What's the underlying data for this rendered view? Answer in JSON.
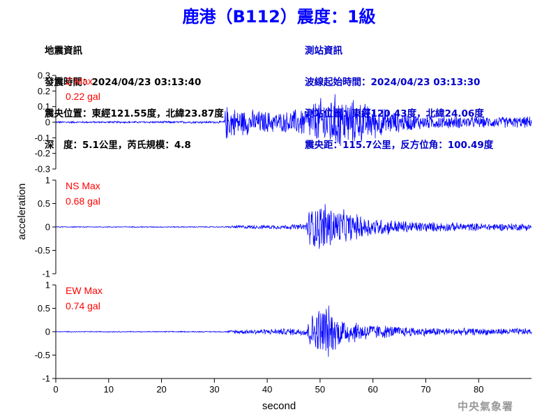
{
  "header": {
    "title": "鹿港（B112）震度：1級"
  },
  "quake_info": {
    "heading": "地震資訊",
    "time": "發震時間：2024/04/23 03:13:40",
    "epicenter": "震央位置：東經121.55度，北緯23.87度",
    "depth_magnitude": "深　度：5.1公里，芮氏規模：4.8"
  },
  "station_info": {
    "heading": "測站資訊",
    "wave_start": "波線起始時間：2024/04/23 03:13:30",
    "location": "測站位置：東經120.43度，北緯24.06度",
    "distance": "震央距：115.7公里，反方位角：100.49度"
  },
  "footer": {
    "agency": "中央氣象署"
  },
  "chart_data": {
    "type": "line",
    "xlabel": "second",
    "ylabel": "acceleration",
    "xlim": [
      0,
      90
    ],
    "x_ticks": [
      0,
      10,
      20,
      30,
      40,
      50,
      60,
      70,
      80
    ],
    "line_color": "#0000ff",
    "label_color": "#ff0000",
    "grid": false,
    "panels": [
      {
        "name": "Z",
        "label": "Z Max",
        "max_value": "0.22 gal",
        "ylim": [
          -0.3,
          0.3
        ],
        "y_ticks": [
          0.3,
          0.2,
          0.1,
          0,
          -0.1,
          -0.2,
          -0.3
        ],
        "y_tick_labels": [
          "0.3",
          "0.2",
          "0.1",
          "0",
          "-0.1",
          "-0.2",
          "-0.3"
        ],
        "envelope": [
          [
            0,
            0.006
          ],
          [
            31.8,
            0.008
          ],
          [
            32.2,
            0.13
          ],
          [
            34,
            0.1
          ],
          [
            38,
            0.085
          ],
          [
            43,
            0.07
          ],
          [
            47,
            0.11
          ],
          [
            50,
            0.17
          ],
          [
            53,
            0.2
          ],
          [
            56,
            0.16
          ],
          [
            60,
            0.12
          ],
          [
            65,
            0.07
          ],
          [
            70,
            0.05
          ],
          [
            80,
            0.04
          ],
          [
            90,
            0.04
          ]
        ]
      },
      {
        "name": "NS",
        "label": "NS Max",
        "max_value": "0.68 gal",
        "ylim": [
          -1,
          1
        ],
        "y_ticks": [
          1,
          0.5,
          0,
          -0.5,
          -1
        ],
        "y_tick_labels": [
          "1",
          "0.5",
          "0",
          "-0.5",
          "-1"
        ],
        "envelope": [
          [
            0,
            0.01
          ],
          [
            32,
            0.012
          ],
          [
            34,
            0.04
          ],
          [
            42,
            0.05
          ],
          [
            47,
            0.07
          ],
          [
            48,
            0.45
          ],
          [
            51,
            0.62
          ],
          [
            53,
            0.45
          ],
          [
            56,
            0.33
          ],
          [
            60,
            0.22
          ],
          [
            65,
            0.16
          ],
          [
            70,
            0.12
          ],
          [
            80,
            0.09
          ],
          [
            90,
            0.09
          ]
        ]
      },
      {
        "name": "EW",
        "label": "EW Max",
        "max_value": "0.74 gal",
        "ylim": [
          -1,
          1
        ],
        "y_ticks": [
          1,
          0.5,
          0,
          -0.5,
          -1
        ],
        "y_tick_labels": [
          "1",
          "0.5",
          "0",
          "-0.5",
          "-1"
        ],
        "envelope": [
          [
            0,
            0.01
          ],
          [
            32,
            0.012
          ],
          [
            34,
            0.05
          ],
          [
            42,
            0.07
          ],
          [
            47,
            0.1
          ],
          [
            48,
            0.35
          ],
          [
            51,
            0.72
          ],
          [
            53,
            0.4
          ],
          [
            56,
            0.27
          ],
          [
            60,
            0.18
          ],
          [
            65,
            0.13
          ],
          [
            70,
            0.1
          ],
          [
            80,
            0.08
          ],
          [
            90,
            0.08
          ]
        ]
      }
    ]
  }
}
